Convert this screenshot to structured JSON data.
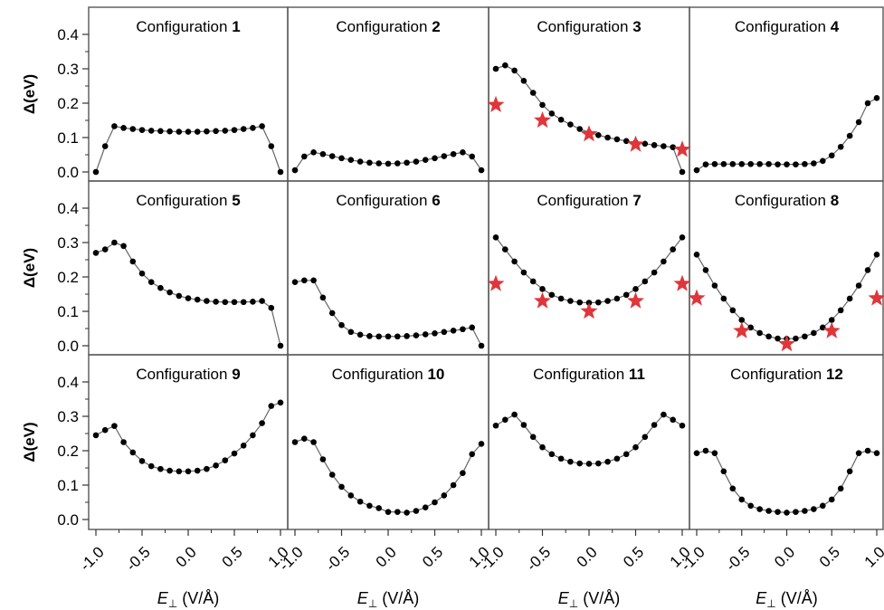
{
  "figure": {
    "xlabel_symbol": "E",
    "xlabel_subscript": "⊥",
    "xlabel_unit": " (V/Å)",
    "ylabel": "Δ(eV)",
    "xticks": [
      "-1.0",
      "-0.5",
      "0.0",
      "0.5",
      "1.0"
    ],
    "yticks": [
      "0.0",
      "0.1",
      "0.2",
      "0.3",
      "0.4"
    ]
  },
  "colors": {
    "points": "#000000",
    "line": "#666666",
    "stars": "#e0353a",
    "frame": "#555555"
  },
  "chart_data": [
    {
      "type": "line",
      "title_prefix": "Configuration ",
      "title_number": "1",
      "xlim": [
        -1.0,
        1.0
      ],
      "ylim": [
        0.0,
        0.4
      ],
      "series": [
        {
          "x": [
            -1.0,
            -0.9,
            -0.8,
            -0.7,
            -0.6,
            -0.5,
            -0.4,
            -0.3,
            -0.2,
            -0.1,
            0.0,
            0.1,
            0.2,
            0.3,
            0.4,
            0.5,
            0.6,
            0.7,
            0.8,
            0.9,
            1.0
          ],
          "y": [
            0.0,
            0.075,
            0.133,
            0.128,
            0.125,
            0.122,
            0.12,
            0.119,
            0.118,
            0.117,
            0.117,
            0.117,
            0.118,
            0.119,
            0.12,
            0.122,
            0.125,
            0.128,
            0.133,
            0.075,
            0.0
          ]
        }
      ],
      "stars": null
    },
    {
      "type": "line",
      "title_prefix": "Configuration ",
      "title_number": "2",
      "xlim": [
        -1.0,
        1.0
      ],
      "ylim": [
        0.0,
        0.4
      ],
      "series": [
        {
          "x": [
            -1.0,
            -0.9,
            -0.8,
            -0.7,
            -0.6,
            -0.5,
            -0.4,
            -0.3,
            -0.2,
            -0.1,
            0.0,
            0.1,
            0.2,
            0.3,
            0.4,
            0.5,
            0.6,
            0.7,
            0.8,
            0.9,
            1.0
          ],
          "y": [
            0.005,
            0.045,
            0.057,
            0.052,
            0.046,
            0.04,
            0.035,
            0.03,
            0.027,
            0.025,
            0.024,
            0.025,
            0.027,
            0.03,
            0.035,
            0.04,
            0.046,
            0.052,
            0.057,
            0.045,
            0.005
          ]
        }
      ],
      "stars": null
    },
    {
      "type": "line",
      "title_prefix": "Configuration ",
      "title_number": "3",
      "xlim": [
        -1.0,
        1.0
      ],
      "ylim": [
        0.0,
        0.4
      ],
      "series": [
        {
          "x": [
            -1.0,
            -0.9,
            -0.8,
            -0.7,
            -0.6,
            -0.5,
            -0.4,
            -0.3,
            -0.2,
            -0.1,
            0.0,
            0.1,
            0.2,
            0.3,
            0.4,
            0.5,
            0.6,
            0.7,
            0.8,
            0.9,
            1.0
          ],
          "y": [
            0.3,
            0.31,
            0.295,
            0.265,
            0.23,
            0.195,
            0.17,
            0.152,
            0.138,
            0.125,
            0.115,
            0.107,
            0.1,
            0.095,
            0.09,
            0.086,
            0.082,
            0.078,
            0.075,
            0.072,
            0.0
          ]
        }
      ],
      "stars": {
        "x": [
          -1.0,
          -0.5,
          0.0,
          0.5,
          1.0
        ],
        "y": [
          0.195,
          0.15,
          0.11,
          0.08,
          0.065
        ]
      }
    },
    {
      "type": "line",
      "title_prefix": "Configuration ",
      "title_number": "4",
      "xlim": [
        -1.0,
        1.0
      ],
      "ylim": [
        0.0,
        0.4
      ],
      "series": [
        {
          "x": [
            -1.0,
            -0.9,
            -0.8,
            -0.7,
            -0.6,
            -0.5,
            -0.4,
            -0.3,
            -0.2,
            -0.1,
            0.0,
            0.1,
            0.2,
            0.3,
            0.4,
            0.5,
            0.6,
            0.7,
            0.8,
            0.9,
            1.0
          ],
          "y": [
            0.005,
            0.022,
            0.023,
            0.023,
            0.023,
            0.023,
            0.023,
            0.023,
            0.023,
            0.022,
            0.022,
            0.022,
            0.023,
            0.025,
            0.032,
            0.048,
            0.073,
            0.105,
            0.145,
            0.2,
            0.215
          ]
        }
      ],
      "stars": null
    },
    {
      "type": "line",
      "title_prefix": "Configuration ",
      "title_number": "5",
      "xlim": [
        -1.0,
        1.0
      ],
      "ylim": [
        0.0,
        0.4
      ],
      "series": [
        {
          "x": [
            -1.0,
            -0.9,
            -0.8,
            -0.7,
            -0.6,
            -0.5,
            -0.4,
            -0.3,
            -0.2,
            -0.1,
            0.0,
            0.1,
            0.2,
            0.3,
            0.4,
            0.5,
            0.6,
            0.7,
            0.8,
            0.9,
            1.0
          ],
          "y": [
            0.27,
            0.28,
            0.3,
            0.29,
            0.245,
            0.21,
            0.185,
            0.168,
            0.155,
            0.145,
            0.138,
            0.134,
            0.13,
            0.128,
            0.127,
            0.127,
            0.127,
            0.128,
            0.13,
            0.11,
            0.0
          ]
        }
      ],
      "stars": null
    },
    {
      "type": "line",
      "title_prefix": "Configuration ",
      "title_number": "6",
      "xlim": [
        -1.0,
        1.0
      ],
      "ylim": [
        0.0,
        0.4
      ],
      "series": [
        {
          "x": [
            -1.0,
            -0.9,
            -0.8,
            -0.7,
            -0.6,
            -0.5,
            -0.4,
            -0.3,
            -0.2,
            -0.1,
            0.0,
            0.1,
            0.2,
            0.3,
            0.4,
            0.5,
            0.6,
            0.7,
            0.8,
            0.9,
            1.0
          ],
          "y": [
            0.185,
            0.19,
            0.19,
            0.14,
            0.095,
            0.06,
            0.04,
            0.032,
            0.028,
            0.027,
            0.027,
            0.027,
            0.028,
            0.03,
            0.033,
            0.036,
            0.04,
            0.044,
            0.048,
            0.053,
            0.0
          ]
        }
      ],
      "stars": null
    },
    {
      "type": "line",
      "title_prefix": "Configuration ",
      "title_number": "7",
      "xlim": [
        -1.0,
        1.0
      ],
      "ylim": [
        0.0,
        0.4
      ],
      "series": [
        {
          "x": [
            -1.0,
            -0.9,
            -0.8,
            -0.7,
            -0.6,
            -0.5,
            -0.4,
            -0.3,
            -0.2,
            -0.1,
            0.0,
            0.1,
            0.2,
            0.3,
            0.4,
            0.5,
            0.6,
            0.7,
            0.8,
            0.9,
            1.0
          ],
          "y": [
            0.315,
            0.28,
            0.245,
            0.213,
            0.187,
            0.165,
            0.148,
            0.137,
            0.13,
            0.126,
            0.125,
            0.126,
            0.13,
            0.137,
            0.148,
            0.165,
            0.187,
            0.213,
            0.245,
            0.28,
            0.315
          ]
        }
      ],
      "stars": {
        "x": [
          -1.0,
          -0.5,
          0.0,
          0.5,
          1.0
        ],
        "y": [
          0.18,
          0.13,
          0.1,
          0.13,
          0.18
        ]
      }
    },
    {
      "type": "line",
      "title_prefix": "Configuration ",
      "title_number": "8",
      "xlim": [
        -1.0,
        1.0
      ],
      "ylim": [
        0.0,
        0.4
      ],
      "series": [
        {
          "x": [
            -1.0,
            -0.9,
            -0.8,
            -0.7,
            -0.6,
            -0.5,
            -0.4,
            -0.3,
            -0.2,
            -0.1,
            0.0,
            0.1,
            0.2,
            0.3,
            0.4,
            0.5,
            0.6,
            0.7,
            0.8,
            0.9,
            1.0
          ],
          "y": [
            0.265,
            0.22,
            0.175,
            0.137,
            0.103,
            0.075,
            0.053,
            0.037,
            0.027,
            0.021,
            0.02,
            0.021,
            0.027,
            0.037,
            0.053,
            0.075,
            0.103,
            0.137,
            0.175,
            0.22,
            0.265
          ]
        }
      ],
      "stars": {
        "x": [
          -1.0,
          -0.5,
          0.0,
          0.5,
          1.0
        ],
        "y": [
          0.138,
          0.043,
          0.005,
          0.043,
          0.138
        ]
      }
    },
    {
      "type": "line",
      "title_prefix": "Configuration ",
      "title_number": "9",
      "xlim": [
        -1.0,
        1.0
      ],
      "ylim": [
        0.0,
        0.4
      ],
      "series": [
        {
          "x": [
            -1.0,
            -0.9,
            -0.8,
            -0.7,
            -0.6,
            -0.5,
            -0.4,
            -0.3,
            -0.2,
            -0.1,
            0.0,
            0.1,
            0.2,
            0.3,
            0.4,
            0.5,
            0.6,
            0.7,
            0.8,
            0.9,
            1.0
          ],
          "y": [
            0.245,
            0.26,
            0.272,
            0.225,
            0.195,
            0.17,
            0.155,
            0.147,
            0.142,
            0.14,
            0.14,
            0.142,
            0.147,
            0.157,
            0.172,
            0.192,
            0.215,
            0.245,
            0.28,
            0.33,
            0.34
          ]
        }
      ],
      "stars": null
    },
    {
      "type": "line",
      "title_prefix": "Configuration ",
      "title_number": "10",
      "xlim": [
        -1.0,
        1.0
      ],
      "ylim": [
        0.0,
        0.4
      ],
      "series": [
        {
          "x": [
            -1.0,
            -0.9,
            -0.8,
            -0.7,
            -0.6,
            -0.5,
            -0.4,
            -0.3,
            -0.2,
            -0.1,
            0.0,
            0.1,
            0.2,
            0.3,
            0.4,
            0.5,
            0.6,
            0.7,
            0.8,
            0.9,
            1.0
          ],
          "y": [
            0.225,
            0.235,
            0.225,
            0.175,
            0.13,
            0.095,
            0.07,
            0.052,
            0.04,
            0.033,
            0.022,
            0.022,
            0.02,
            0.025,
            0.035,
            0.05,
            0.07,
            0.1,
            0.135,
            0.19,
            0.22
          ]
        }
      ],
      "stars": null
    },
    {
      "type": "line",
      "title_prefix": "Configuration ",
      "title_number": "11",
      "xlim": [
        -1.0,
        1.0
      ],
      "ylim": [
        0.0,
        0.4
      ],
      "series": [
        {
          "x": [
            -1.0,
            -0.9,
            -0.8,
            -0.7,
            -0.6,
            -0.5,
            -0.4,
            -0.3,
            -0.2,
            -0.1,
            0.0,
            0.1,
            0.2,
            0.3,
            0.4,
            0.5,
            0.6,
            0.7,
            0.8,
            0.9,
            1.0
          ],
          "y": [
            0.273,
            0.29,
            0.305,
            0.275,
            0.24,
            0.21,
            0.19,
            0.177,
            0.168,
            0.163,
            0.162,
            0.163,
            0.168,
            0.177,
            0.19,
            0.21,
            0.24,
            0.275,
            0.305,
            0.29,
            0.273
          ]
        }
      ],
      "stars": null
    },
    {
      "type": "line",
      "title_prefix": "Configuration ",
      "title_number": "12",
      "xlim": [
        -1.0,
        1.0
      ],
      "ylim": [
        0.0,
        0.4
      ],
      "series": [
        {
          "x": [
            -1.0,
            -0.9,
            -0.8,
            -0.7,
            -0.6,
            -0.5,
            -0.4,
            -0.3,
            -0.2,
            -0.1,
            0.0,
            0.1,
            0.2,
            0.3,
            0.4,
            0.5,
            0.6,
            0.7,
            0.8,
            0.9,
            1.0
          ],
          "y": [
            0.193,
            0.2,
            0.193,
            0.14,
            0.09,
            0.058,
            0.04,
            0.03,
            0.025,
            0.022,
            0.02,
            0.022,
            0.025,
            0.03,
            0.04,
            0.058,
            0.09,
            0.14,
            0.193,
            0.2,
            0.193
          ]
        }
      ],
      "stars": null
    }
  ]
}
